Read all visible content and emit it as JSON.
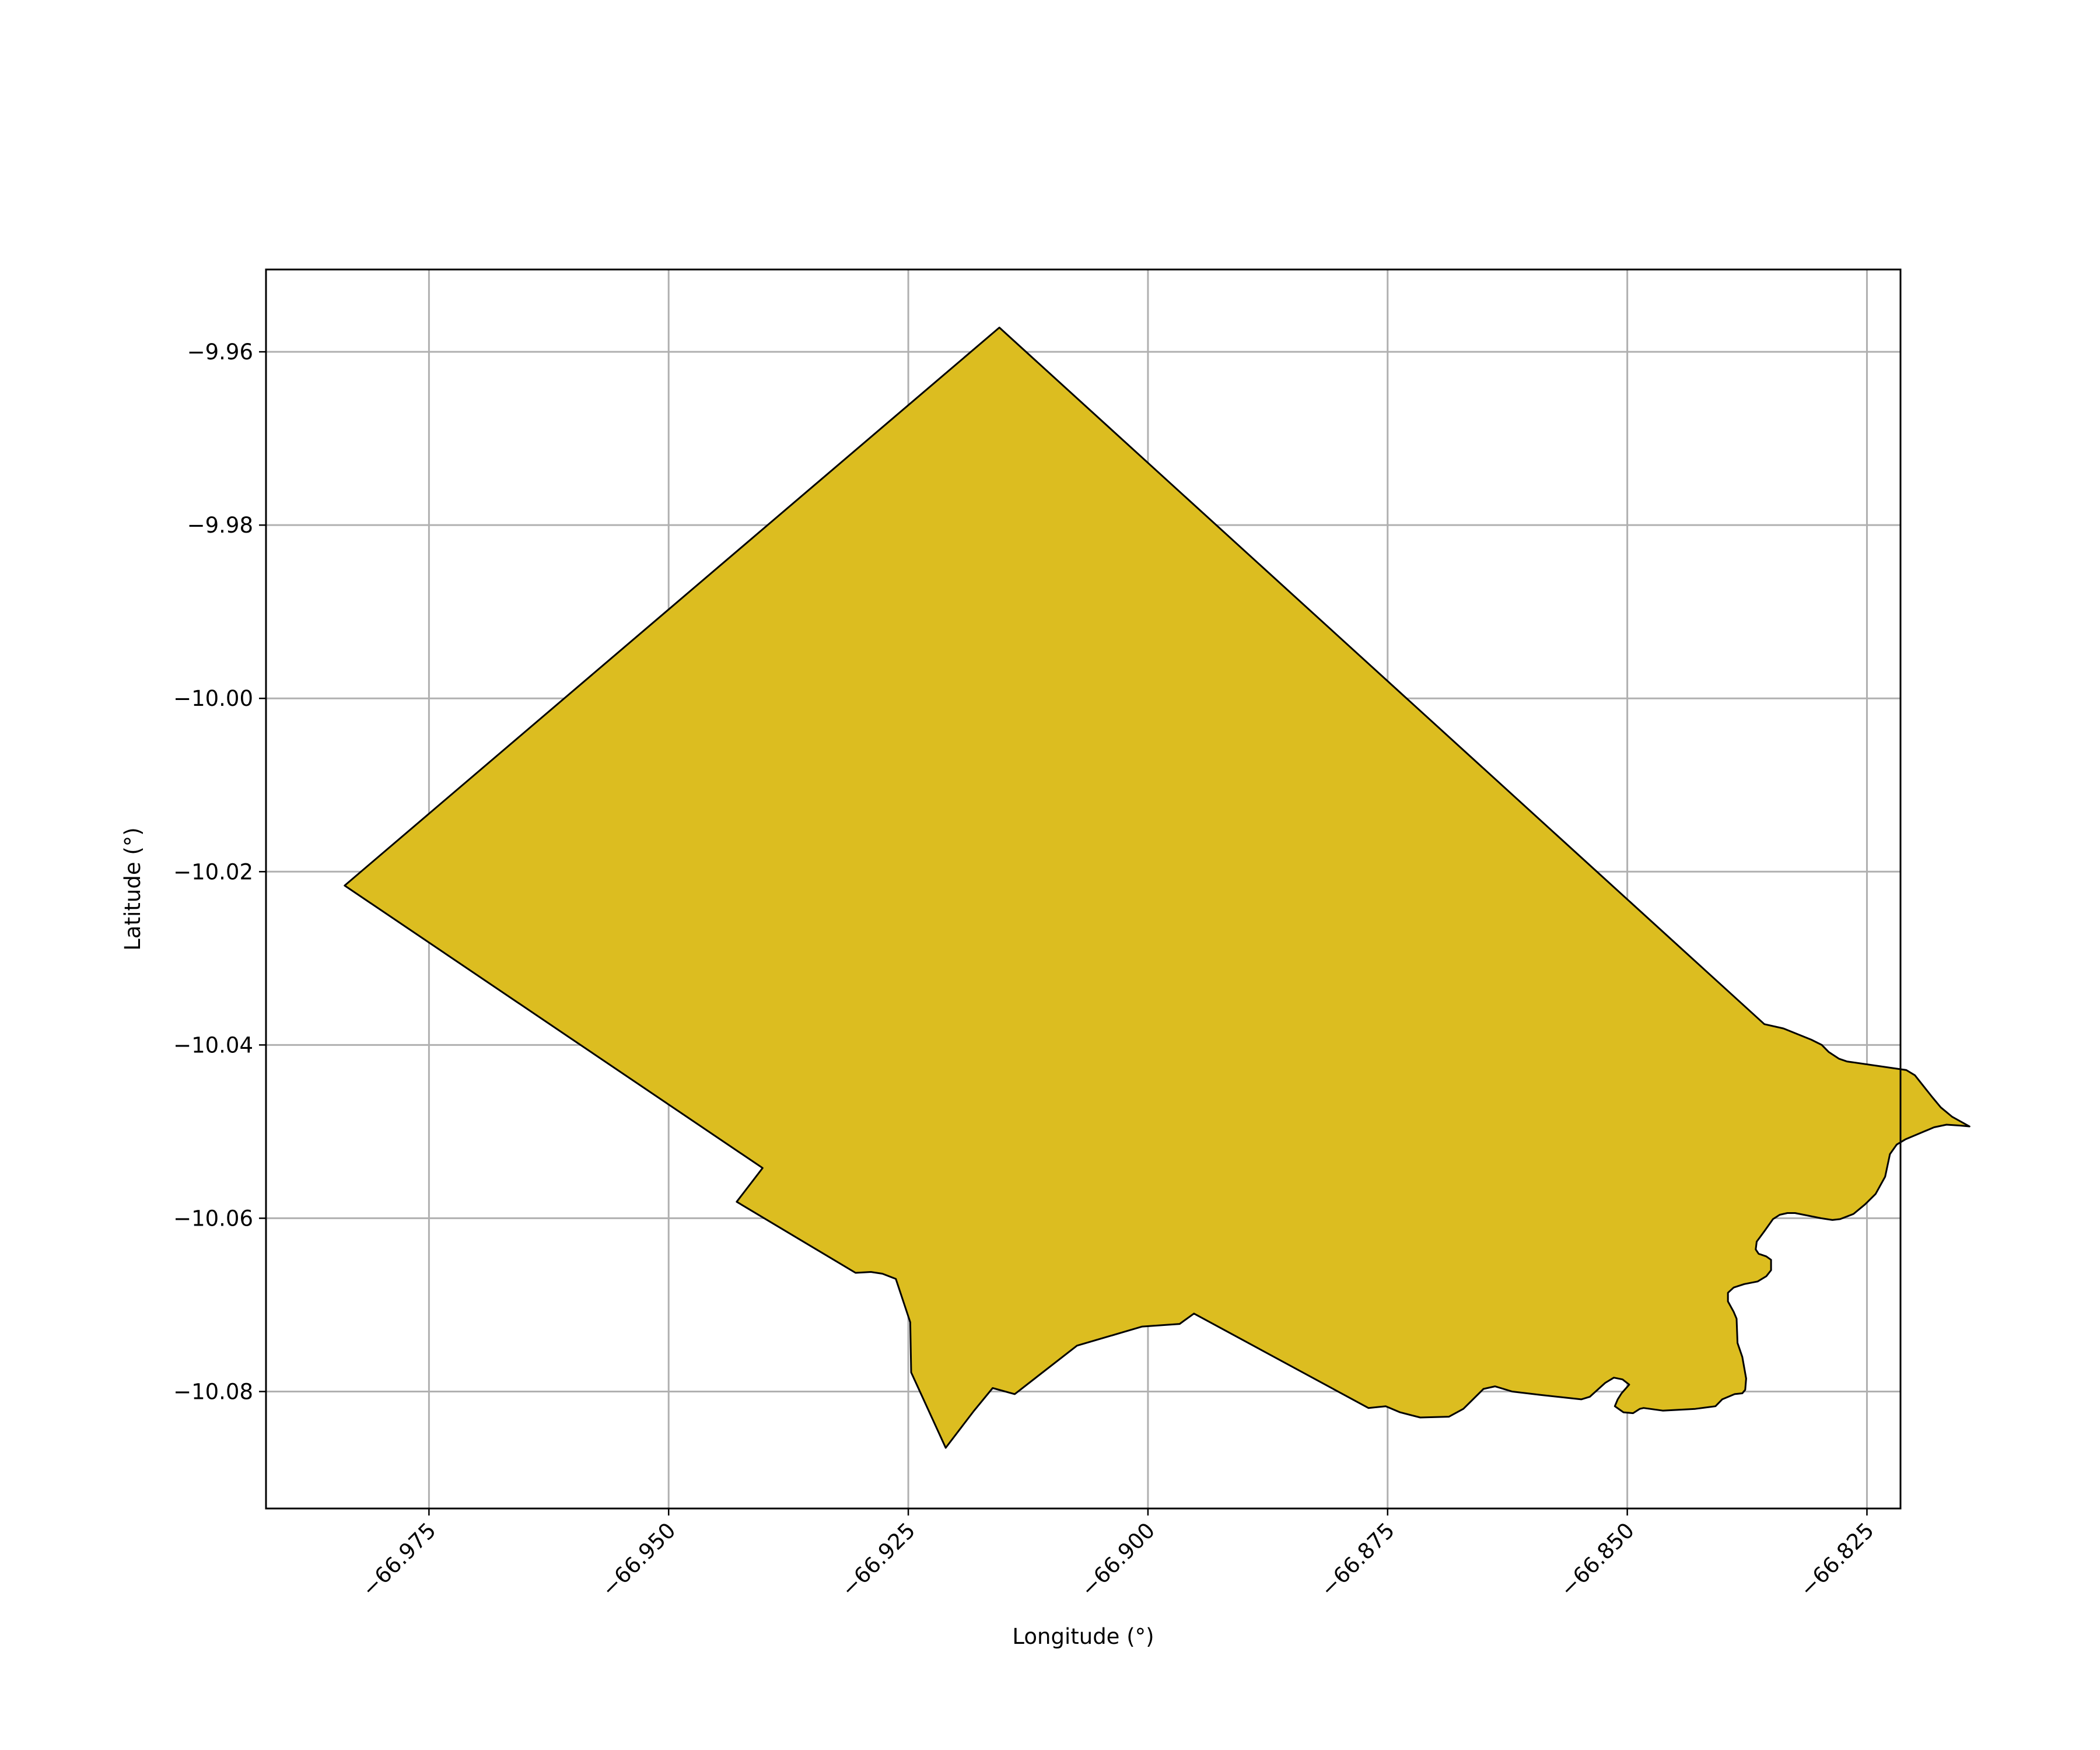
{
  "chart_data": {
    "type": "map",
    "xlabel": "Longitude (°)",
    "ylabel": "Latitude (°)",
    "xlim": [
      -66.992,
      -66.8215
    ],
    "ylim": [
      -10.0935,
      -9.9505
    ],
    "grid": true,
    "x_ticks": [
      {
        "value": -66.975,
        "label": "−66.975"
      },
      {
        "value": -66.95,
        "label": "−66.950"
      },
      {
        "value": -66.925,
        "label": "−66.925"
      },
      {
        "value": -66.9,
        "label": "−66.900"
      },
      {
        "value": -66.875,
        "label": "−66.875"
      },
      {
        "value": -66.85,
        "label": "−66.850"
      },
      {
        "value": -66.825,
        "label": "−66.825"
      }
    ],
    "y_ticks": [
      {
        "value": -9.96,
        "label": "−9.96"
      },
      {
        "value": -9.98,
        "label": "−9.98"
      },
      {
        "value": -10.0,
        "label": "−10.00"
      },
      {
        "value": -10.02,
        "label": "−10.02"
      },
      {
        "value": -10.04,
        "label": "−10.04"
      },
      {
        "value": -10.06,
        "label": "−10.06"
      },
      {
        "value": -10.08,
        "label": "−10.08"
      }
    ],
    "fill_color": "#dcbd20",
    "edge_color": "#000000",
    "polygon": [
      [
        -66.9838,
        -10.0216
      ],
      [
        -66.9155,
        -9.9572
      ],
      [
        -66.8357,
        -10.0376
      ],
      [
        -66.8337,
        -10.0381
      ],
      [
        -66.8308,
        -10.0394
      ],
      [
        -66.8297,
        -10.04
      ],
      [
        -66.829,
        -10.0408
      ],
      [
        -66.8279,
        -10.0416
      ],
      [
        -66.8271,
        -10.0419
      ],
      [
        -66.8209,
        -10.0429
      ],
      [
        -66.82,
        -10.0435
      ],
      [
        -66.8182,
        -10.046
      ],
      [
        -66.8173,
        -10.0472
      ],
      [
        -66.8161,
        -10.0483
      ],
      [
        -66.8143,
        -10.0494
      ],
      [
        -66.8153,
        -10.0493
      ],
      [
        -66.8167,
        -10.0492
      ],
      [
        -66.818,
        -10.0495
      ],
      [
        -66.821,
        -10.0509
      ],
      [
        -66.8219,
        -10.0515
      ],
      [
        -66.8226,
        -10.0526
      ],
      [
        -66.8231,
        -10.0552
      ],
      [
        -66.8241,
        -10.0572
      ],
      [
        -66.8252,
        -10.0584
      ],
      [
        -66.8264,
        -10.0595
      ],
      [
        -66.8278,
        -10.0601
      ],
      [
        -66.8286,
        -10.0602
      ],
      [
        -66.8298,
        -10.06
      ],
      [
        -66.8325,
        -10.0594
      ],
      [
        -66.8333,
        -10.0594
      ],
      [
        -66.8341,
        -10.0596
      ],
      [
        -66.8348,
        -10.0601
      ],
      [
        -66.8357,
        -10.0615
      ],
      [
        -66.8365,
        -10.0627
      ],
      [
        -66.8366,
        -10.0636
      ],
      [
        -66.8363,
        -10.0641
      ],
      [
        -66.8355,
        -10.0644
      ],
      [
        -66.835,
        -10.0648
      ],
      [
        -66.835,
        -10.066
      ],
      [
        -66.8355,
        -10.0667
      ],
      [
        -66.8364,
        -10.0673
      ],
      [
        -66.8378,
        -10.0676
      ],
      [
        -66.8389,
        -10.068
      ],
      [
        -66.8395,
        -10.0686
      ],
      [
        -66.8395,
        -10.0696
      ],
      [
        -66.8389,
        -10.0708
      ],
      [
        -66.8386,
        -10.0716
      ],
      [
        -66.8385,
        -10.0744
      ],
      [
        -66.838,
        -10.076
      ],
      [
        -66.8376,
        -10.0785
      ],
      [
        -66.8377,
        -10.0798
      ],
      [
        -66.838,
        -10.0802
      ],
      [
        -66.8388,
        -10.0803
      ],
      [
        -66.8401,
        -10.0809
      ],
      [
        -66.8408,
        -10.0817
      ],
      [
        -66.8429,
        -10.082
      ],
      [
        -66.8463,
        -10.0822
      ],
      [
        -66.8483,
        -10.0819
      ],
      [
        -66.8487,
        -10.082
      ],
      [
        -66.8494,
        -10.0825
      ],
      [
        -66.8504,
        -10.0824
      ],
      [
        -66.8513,
        -10.0817
      ],
      [
        -66.851,
        -10.0809
      ],
      [
        -66.8506,
        -10.0802
      ],
      [
        -66.8498,
        -10.0792
      ],
      [
        -66.8505,
        -10.0786
      ],
      [
        -66.8514,
        -10.0784
      ],
      [
        -66.8523,
        -10.079
      ],
      [
        -66.8539,
        -10.0806
      ],
      [
        -66.8548,
        -10.0809
      ],
      [
        -66.859,
        -10.0804
      ],
      [
        -66.862,
        -10.08
      ],
      [
        -66.8638,
        -10.0794
      ],
      [
        -66.865,
        -10.0797
      ],
      [
        -66.8671,
        -10.082
      ],
      [
        -66.8686,
        -10.0829
      ],
      [
        -66.8716,
        -10.083
      ],
      [
        -66.8737,
        -10.0824
      ],
      [
        -66.8752,
        -10.0817
      ],
      [
        -66.877,
        -10.0819
      ],
      [
        -66.8952,
        -10.071
      ],
      [
        -66.8967,
        -10.0722
      ],
      [
        -66.9006,
        -10.0725
      ],
      [
        -66.9074,
        -10.0747
      ],
      [
        -66.9139,
        -10.0803
      ],
      [
        -66.9162,
        -10.0796
      ],
      [
        -66.9182,
        -10.0823
      ],
      [
        -66.9211,
        -10.0865
      ],
      [
        -66.9247,
        -10.0778
      ],
      [
        -66.9248,
        -10.072
      ],
      [
        -66.9263,
        -10.067
      ],
      [
        -66.9277,
        -10.0664
      ],
      [
        -66.9289,
        -10.0662
      ],
      [
        -66.9305,
        -10.0663
      ],
      [
        -66.9429,
        -10.0581
      ],
      [
        -66.9402,
        -10.0542
      ],
      [
        -66.9838,
        -10.0216
      ]
    ]
  }
}
